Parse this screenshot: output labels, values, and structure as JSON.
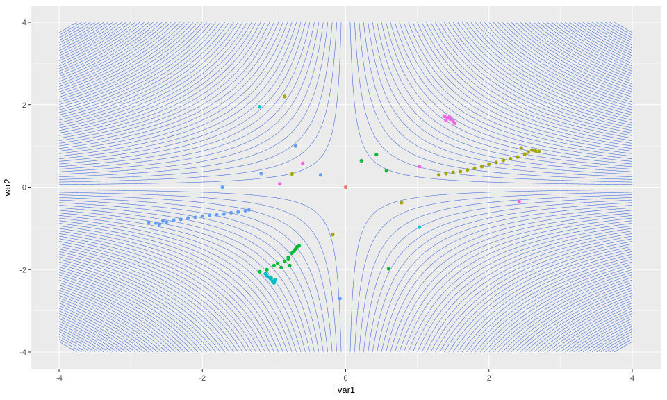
{
  "chart_data": {
    "type": "scatter",
    "title": "",
    "xlabel": "var1",
    "ylabel": "var2",
    "xlim": [
      -4,
      4
    ],
    "ylim": [
      -4,
      4
    ],
    "x_ticks": [
      "-4",
      "-2",
      "0",
      "2",
      "4"
    ],
    "y_ticks": [
      "-4",
      "-2",
      "0",
      "2",
      "4"
    ],
    "grid": true,
    "legend": "none",
    "background": "#ebebeb",
    "contour": {
      "function": "var1 * var2",
      "color": "#3a67d9",
      "levels_per_sign": 60,
      "level_step": 0.25
    },
    "series": [
      {
        "color": "#f8766d",
        "points": [
          [
            0.0,
            0.0
          ]
        ]
      },
      {
        "color": "#a3a500",
        "points": [
          [
            -0.85,
            2.2
          ],
          [
            -0.75,
            0.32
          ],
          [
            0.78,
            -0.38
          ],
          [
            -0.18,
            -1.15
          ],
          [
            1.3,
            0.3
          ],
          [
            1.4,
            0.33
          ],
          [
            1.5,
            0.36
          ],
          [
            1.6,
            0.38
          ],
          [
            1.7,
            0.42
          ],
          [
            1.8,
            0.46
          ],
          [
            1.9,
            0.5
          ],
          [
            2.0,
            0.56
          ],
          [
            2.1,
            0.6
          ],
          [
            2.2,
            0.65
          ],
          [
            2.3,
            0.69
          ],
          [
            2.4,
            0.73
          ],
          [
            2.5,
            0.8
          ],
          [
            2.55,
            0.85
          ],
          [
            2.6,
            0.9
          ],
          [
            2.65,
            0.88
          ],
          [
            2.45,
            0.95
          ],
          [
            2.7,
            0.87
          ]
        ]
      },
      {
        "color": "#00ba38",
        "points": [
          [
            0.22,
            0.64
          ],
          [
            0.43,
            0.79
          ],
          [
            0.57,
            0.4
          ],
          [
            0.6,
            -1.98
          ],
          [
            -1.2,
            -2.05
          ],
          [
            -1.1,
            -2.0
          ],
          [
            -1.0,
            -1.9
          ],
          [
            -0.95,
            -1.85
          ],
          [
            -0.9,
            -1.95
          ],
          [
            -0.85,
            -1.8
          ],
          [
            -0.8,
            -1.7
          ],
          [
            -0.78,
            -1.9
          ],
          [
            -0.75,
            -1.6
          ],
          [
            -0.72,
            -1.55
          ],
          [
            -0.7,
            -1.5
          ],
          [
            -0.68,
            -1.45
          ],
          [
            -0.65,
            -1.42
          ],
          [
            -0.8,
            -1.75
          ]
        ]
      },
      {
        "color": "#00bfc4",
        "points": [
          [
            -1.2,
            1.95
          ],
          [
            1.03,
            -0.97
          ],
          [
            -1.1,
            -2.15
          ],
          [
            -1.05,
            -2.22
          ],
          [
            -1.02,
            -2.28
          ],
          [
            -1.0,
            -2.32
          ],
          [
            -1.08,
            -2.18
          ],
          [
            -1.12,
            -2.1
          ],
          [
            -0.98,
            -2.25
          ],
          [
            -1.04,
            -2.2
          ]
        ]
      },
      {
        "color": "#619cff",
        "points": [
          [
            -0.7,
            1.0
          ],
          [
            -1.18,
            0.33
          ],
          [
            -0.35,
            0.3
          ],
          [
            -1.72,
            0.0
          ],
          [
            -0.08,
            -2.7
          ],
          [
            -2.75,
            -0.85
          ],
          [
            -2.65,
            -0.87
          ],
          [
            -2.6,
            -0.9
          ],
          [
            -2.5,
            -0.85
          ],
          [
            -2.4,
            -0.8
          ],
          [
            -2.3,
            -0.78
          ],
          [
            -2.2,
            -0.75
          ],
          [
            -2.1,
            -0.73
          ],
          [
            -2.0,
            -0.7
          ],
          [
            -1.9,
            -0.68
          ],
          [
            -1.8,
            -0.67
          ],
          [
            -1.7,
            -0.65
          ],
          [
            -1.6,
            -0.62
          ],
          [
            -1.5,
            -0.6
          ],
          [
            -1.4,
            -0.57
          ],
          [
            -1.35,
            -0.55
          ],
          [
            -2.55,
            -0.82
          ]
        ]
      },
      {
        "color": "#f564e3",
        "points": [
          [
            -0.6,
            0.58
          ],
          [
            -0.92,
            0.08
          ],
          [
            1.03,
            0.5
          ],
          [
            2.42,
            -0.35
          ],
          [
            1.38,
            1.72
          ],
          [
            1.42,
            1.68
          ],
          [
            1.46,
            1.65
          ],
          [
            1.5,
            1.6
          ],
          [
            1.4,
            1.62
          ],
          [
            1.45,
            1.7
          ],
          [
            1.52,
            1.55
          ]
        ]
      }
    ]
  }
}
